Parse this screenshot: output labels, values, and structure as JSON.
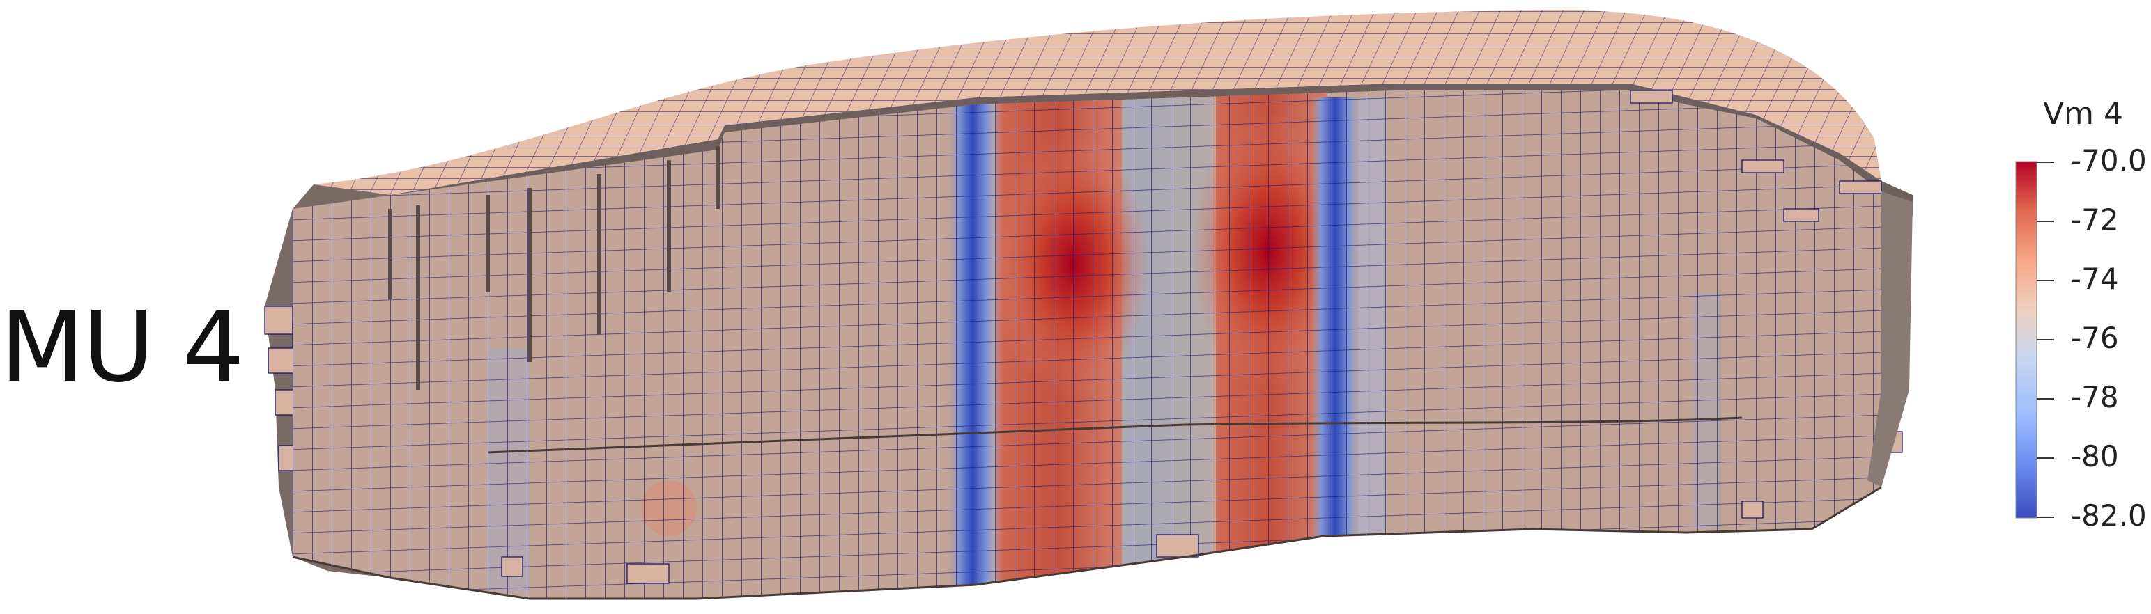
{
  "figure": {
    "label": "MU 4"
  },
  "colorbar": {
    "title": "Vm 4",
    "ticks": [
      "-70.0",
      "-72",
      "-74",
      "-76",
      "-78",
      "-80",
      "-82.0"
    ],
    "range": [
      -82.0,
      -70.0
    ],
    "colormap_stops": [
      "#3b4cc0",
      "#6788ee",
      "#9abbff",
      "#c9d7f0",
      "#edd1c2",
      "#f7a889",
      "#e26952",
      "#b40426"
    ]
  },
  "colors": {
    "mesh_base": "#c2a597",
    "mesh_top": "#e8c0aa",
    "side_face": "#6e5f5c",
    "grid_line": "#1a1a6e",
    "band_red": "#b40426",
    "band_blue": "#3b4cc0"
  }
}
